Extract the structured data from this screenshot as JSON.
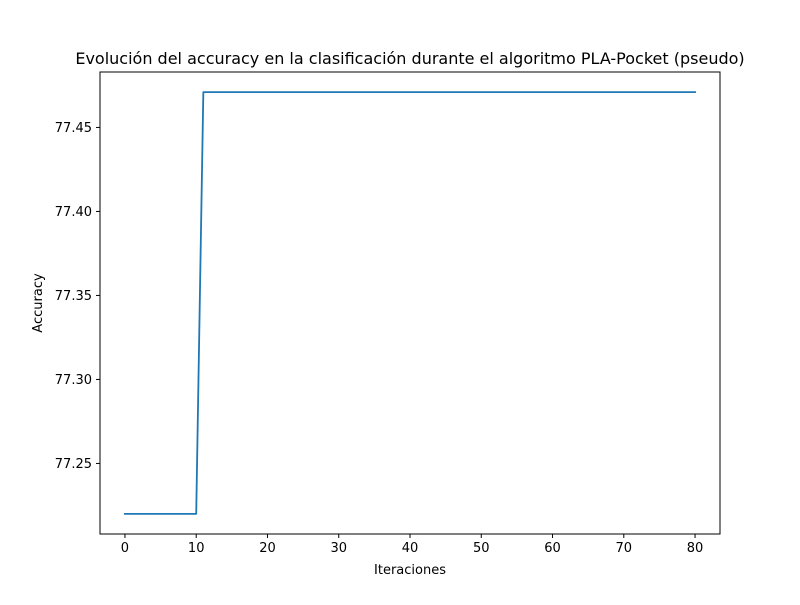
{
  "chart_data": {
    "type": "line",
    "title": "Evolución del accuracy en la clasificación durante el algoritmo PLA-Pocket (pseudo)",
    "xlabel": "Iteraciones",
    "ylabel": "Accuracy",
    "xlim": [
      -3.5,
      83.5
    ],
    "ylim": [
      77.208,
      77.483
    ],
    "xticks": [
      0,
      10,
      20,
      30,
      40,
      50,
      60,
      70,
      80
    ],
    "xtick_labels": [
      "0",
      "10",
      "20",
      "30",
      "40",
      "50",
      "60",
      "70",
      "80"
    ],
    "yticks": [
      77.25,
      77.3,
      77.35,
      77.4,
      77.45
    ],
    "ytick_labels": [
      "77.25",
      "77.30",
      "77.35",
      "77.40",
      "77.45"
    ],
    "grid": false,
    "series": [
      {
        "color": "#1f77b4",
        "x": [
          0,
          10,
          11,
          80
        ],
        "y": [
          77.22,
          77.22,
          77.471,
          77.471
        ]
      }
    ]
  }
}
